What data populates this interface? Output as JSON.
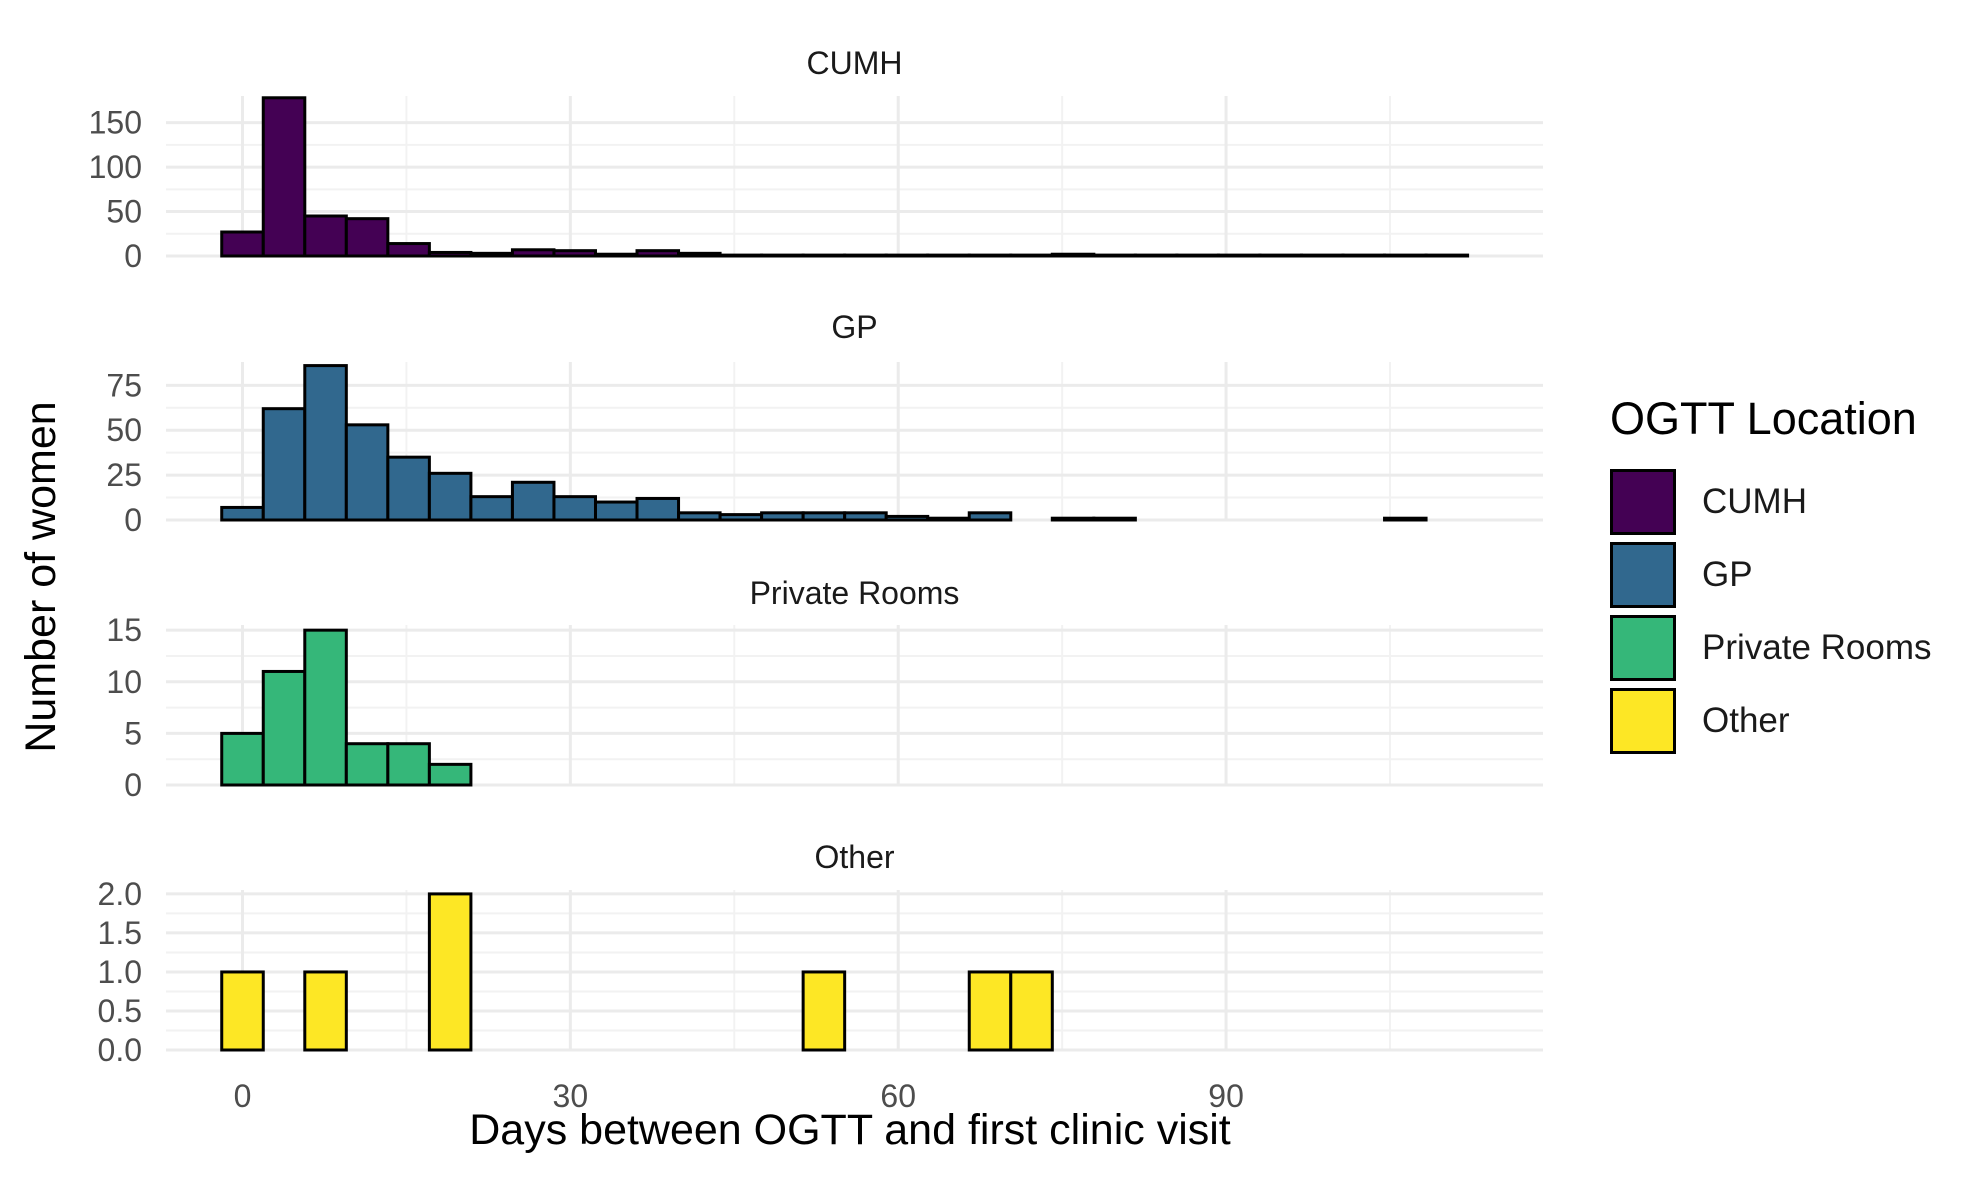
{
  "chart_data": {
    "type": "bar",
    "subtype": "faceted-histogram",
    "xlabel": "Days between OGTT and first clinic visit",
    "ylabel": "Number of women",
    "x_ticks": [
      0,
      30,
      60,
      90
    ],
    "xlim": [
      -7,
      119
    ],
    "bin_width": 3.8,
    "bin_start": -1.9,
    "grid": true,
    "legend": {
      "title": "OGTT Location",
      "position": "right",
      "entries": [
        {
          "label": "CUMH",
          "color": "#440154"
        },
        {
          "label": "GP",
          "color": "#31688E"
        },
        {
          "label": "Private Rooms",
          "color": "#35B779"
        },
        {
          "label": "Other",
          "color": "#FDE725"
        }
      ]
    },
    "panels": [
      {
        "title": "CUMH",
        "color": "#440154",
        "ylim": [
          0,
          180
        ],
        "y_ticks": [
          0,
          50,
          100,
          150
        ],
        "y_tick_labels": [
          "0",
          "50",
          "100",
          "150"
        ],
        "values": [
          27,
          178,
          45,
          42,
          14,
          4,
          3,
          7,
          6,
          2,
          6,
          3,
          1,
          1,
          1,
          1,
          1,
          1,
          1,
          1,
          2,
          1,
          1,
          1,
          1,
          1,
          1,
          1,
          1,
          1
        ]
      },
      {
        "title": "GP",
        "color": "#31688E",
        "ylim": [
          0,
          88
        ],
        "y_ticks": [
          0,
          25,
          50,
          75
        ],
        "y_tick_labels": [
          "0",
          "25",
          "50",
          "75"
        ],
        "values": [
          7,
          62,
          86,
          53,
          35,
          26,
          13,
          21,
          13,
          10,
          12,
          4,
          3,
          4,
          4,
          4,
          2,
          1,
          4,
          0,
          1,
          1,
          0,
          0,
          0,
          0,
          0,
          0,
          1
        ]
      },
      {
        "title": "Private Rooms",
        "color": "#35B779",
        "ylim": [
          0,
          15.5
        ],
        "y_ticks": [
          0,
          5,
          10,
          15
        ],
        "y_tick_labels": [
          "0",
          "5",
          "10",
          "15"
        ],
        "values": [
          5,
          11,
          15,
          4,
          4,
          2,
          0,
          0,
          0,
          0,
          0,
          0,
          0,
          0,
          0,
          0,
          0,
          0,
          0,
          0,
          0,
          0,
          0,
          0,
          0,
          0,
          0,
          0
        ]
      },
      {
        "title": "Other",
        "color": "#FDE725",
        "ylim": [
          0,
          2.05
        ],
        "y_ticks": [
          0,
          0.5,
          1,
          1.5,
          2
        ],
        "y_tick_labels": [
          "0.0",
          "0.5",
          "1.0",
          "1.5",
          "2.0"
        ],
        "values": [
          1,
          0,
          1,
          0,
          0,
          2,
          0,
          0,
          0,
          0,
          0,
          0,
          0,
          0,
          1,
          0,
          0,
          0,
          1,
          1,
          0,
          0,
          0,
          0,
          0,
          0,
          0,
          0
        ]
      }
    ]
  }
}
